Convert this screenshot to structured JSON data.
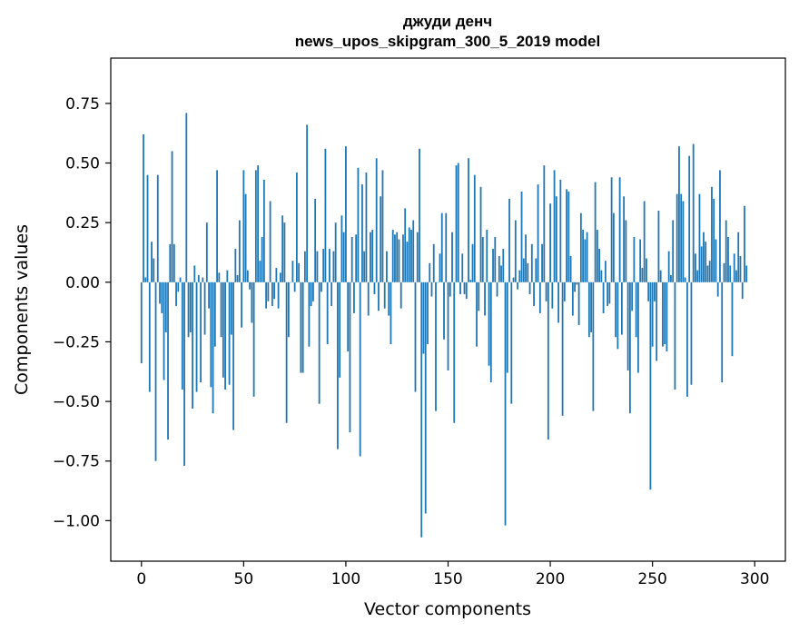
{
  "chart_data": {
    "type": "bar",
    "title": "джуди денч",
    "subtitle": "news_upos_skipgram_300_5_2019 model",
    "xlabel": "Vector components",
    "ylabel": "Components values",
    "xlim": [
      -15,
      315
    ],
    "ylim": [
      -1.17,
      0.94
    ],
    "xticks": [
      0,
      50,
      100,
      150,
      200,
      250,
      300
    ],
    "xtick_labels": [
      "0",
      "50",
      "100",
      "150",
      "200",
      "250",
      "300"
    ],
    "yticks": [
      0.75,
      0.5,
      0.25,
      0.0,
      -0.25,
      -0.5,
      -0.75,
      -1.0
    ],
    "ytick_labels": [
      "0.75",
      "0.50",
      "0.25",
      "0.00",
      "−0.25",
      "−0.50",
      "−0.75",
      "−1.00"
    ],
    "grid": false,
    "series": [
      {
        "name": "components",
        "color": "#1f77b4",
        "values": [
          -0.34,
          0.62,
          0.02,
          0.45,
          -0.46,
          0.17,
          0.1,
          -0.75,
          0.45,
          -0.09,
          -0.13,
          -0.41,
          -0.21,
          -0.66,
          0.16,
          0.55,
          0.16,
          -0.1,
          -0.04,
          0.02,
          -0.45,
          -0.77,
          0.71,
          -0.23,
          -0.21,
          -0.53,
          0.07,
          -0.46,
          0.03,
          -0.42,
          0.02,
          -0.22,
          0.25,
          -0.11,
          -0.44,
          -0.55,
          -0.27,
          0.47,
          0.04,
          -0.23,
          -0.4,
          -0.45,
          0.05,
          -0.43,
          -0.22,
          -0.62,
          0.14,
          0.03,
          0.26,
          -0.19,
          0.47,
          0.37,
          0.05,
          -0.03,
          -0.17,
          -0.48,
          0.47,
          0.49,
          0.09,
          0.19,
          0.43,
          -0.11,
          -0.08,
          0.34,
          -0.1,
          -0.07,
          0.06,
          -0.11,
          0.04,
          0.28,
          0.25,
          -0.59,
          -0.23,
          0.0,
          0.09,
          -0.04,
          0.46,
          0.08,
          -0.38,
          -0.38,
          0.13,
          0.66,
          -0.27,
          -0.1,
          -0.08,
          0.35,
          0.13,
          -0.51,
          -0.04,
          0.14,
          0.56,
          -0.26,
          0.14,
          -0.1,
          0.13,
          0.25,
          -0.7,
          -0.4,
          0.28,
          0.21,
          0.57,
          -0.29,
          -0.63,
          0.19,
          -0.13,
          0.2,
          0.48,
          -0.73,
          0.41,
          0.13,
          0.46,
          -0.14,
          0.21,
          0.22,
          -0.05,
          0.52,
          -0.12,
          0.36,
          0.47,
          -0.11,
          0.13,
          -0.14,
          -0.26,
          0.22,
          0.2,
          0.21,
          0.18,
          -0.11,
          0.2,
          0.31,
          0.17,
          0.23,
          0.22,
          0.26,
          -0.46,
          0.21,
          0.56,
          -1.07,
          -0.3,
          -0.97,
          -0.26,
          0.08,
          -0.06,
          0.16,
          -0.54,
          0.0,
          0.12,
          0.29,
          -0.24,
          0.29,
          -0.37,
          -0.06,
          0.21,
          -0.59,
          0.49,
          0.5,
          -0.05,
          0.12,
          -0.05,
          -0.07,
          0.52,
          0.01,
          0.16,
          0.45,
          -0.27,
          -0.12,
          0.4,
          0.19,
          -0.14,
          0.22,
          -0.35,
          -0.42,
          0.14,
          0.19,
          -0.06,
          0.11,
          0.07,
          0.14,
          -1.02,
          -0.38,
          0.35,
          -0.51,
          0.02,
          0.26,
          -0.03,
          0.05,
          0.38,
          0.1,
          0.2,
          0.08,
          -0.05,
          0.16,
          -0.1,
          0.1,
          0.41,
          -0.13,
          0.16,
          0.49,
          -0.08,
          -0.66,
          0.33,
          -0.11,
          0.47,
          0.36,
          -0.17,
          0.43,
          -0.56,
          -0.08,
          0.39,
          0.38,
          0.11,
          -0.14,
          -0.04,
          -0.01,
          -0.18,
          0.29,
          0.22,
          0.18,
          0.21,
          -0.23,
          -0.21,
          -0.54,
          0.42,
          0.22,
          0.14,
          0.05,
          -0.13,
          0.09,
          -0.1,
          -0.09,
          0.44,
          0.29,
          -0.23,
          -0.28,
          0.44,
          -0.22,
          0.36,
          0.26,
          -0.37,
          -0.55,
          -0.12,
          0.19,
          -0.23,
          -0.38,
          0.18,
          0.06,
          0.34,
          0.1,
          -0.08,
          -0.87,
          -0.27,
          -0.08,
          -0.33,
          0.3,
          0.05,
          -0.27,
          -0.26,
          -0.29,
          0.13,
          0.03,
          0.26,
          -0.45,
          0.37,
          0.57,
          0.37,
          0.34,
          0.02,
          -0.48,
          0.53,
          -0.43,
          0.58,
          0.12,
          0.05,
          0.37,
          0.15,
          0.21,
          0.17,
          0.07,
          0.09,
          0.4,
          0.35,
          0.18,
          -0.06,
          0.47,
          -0.42,
          0.08,
          0.26,
          0.19,
          0.07,
          -0.31,
          0.12,
          0.05,
          0.21,
          0.11,
          -0.07,
          0.32,
          0.07
        ]
      }
    ]
  }
}
